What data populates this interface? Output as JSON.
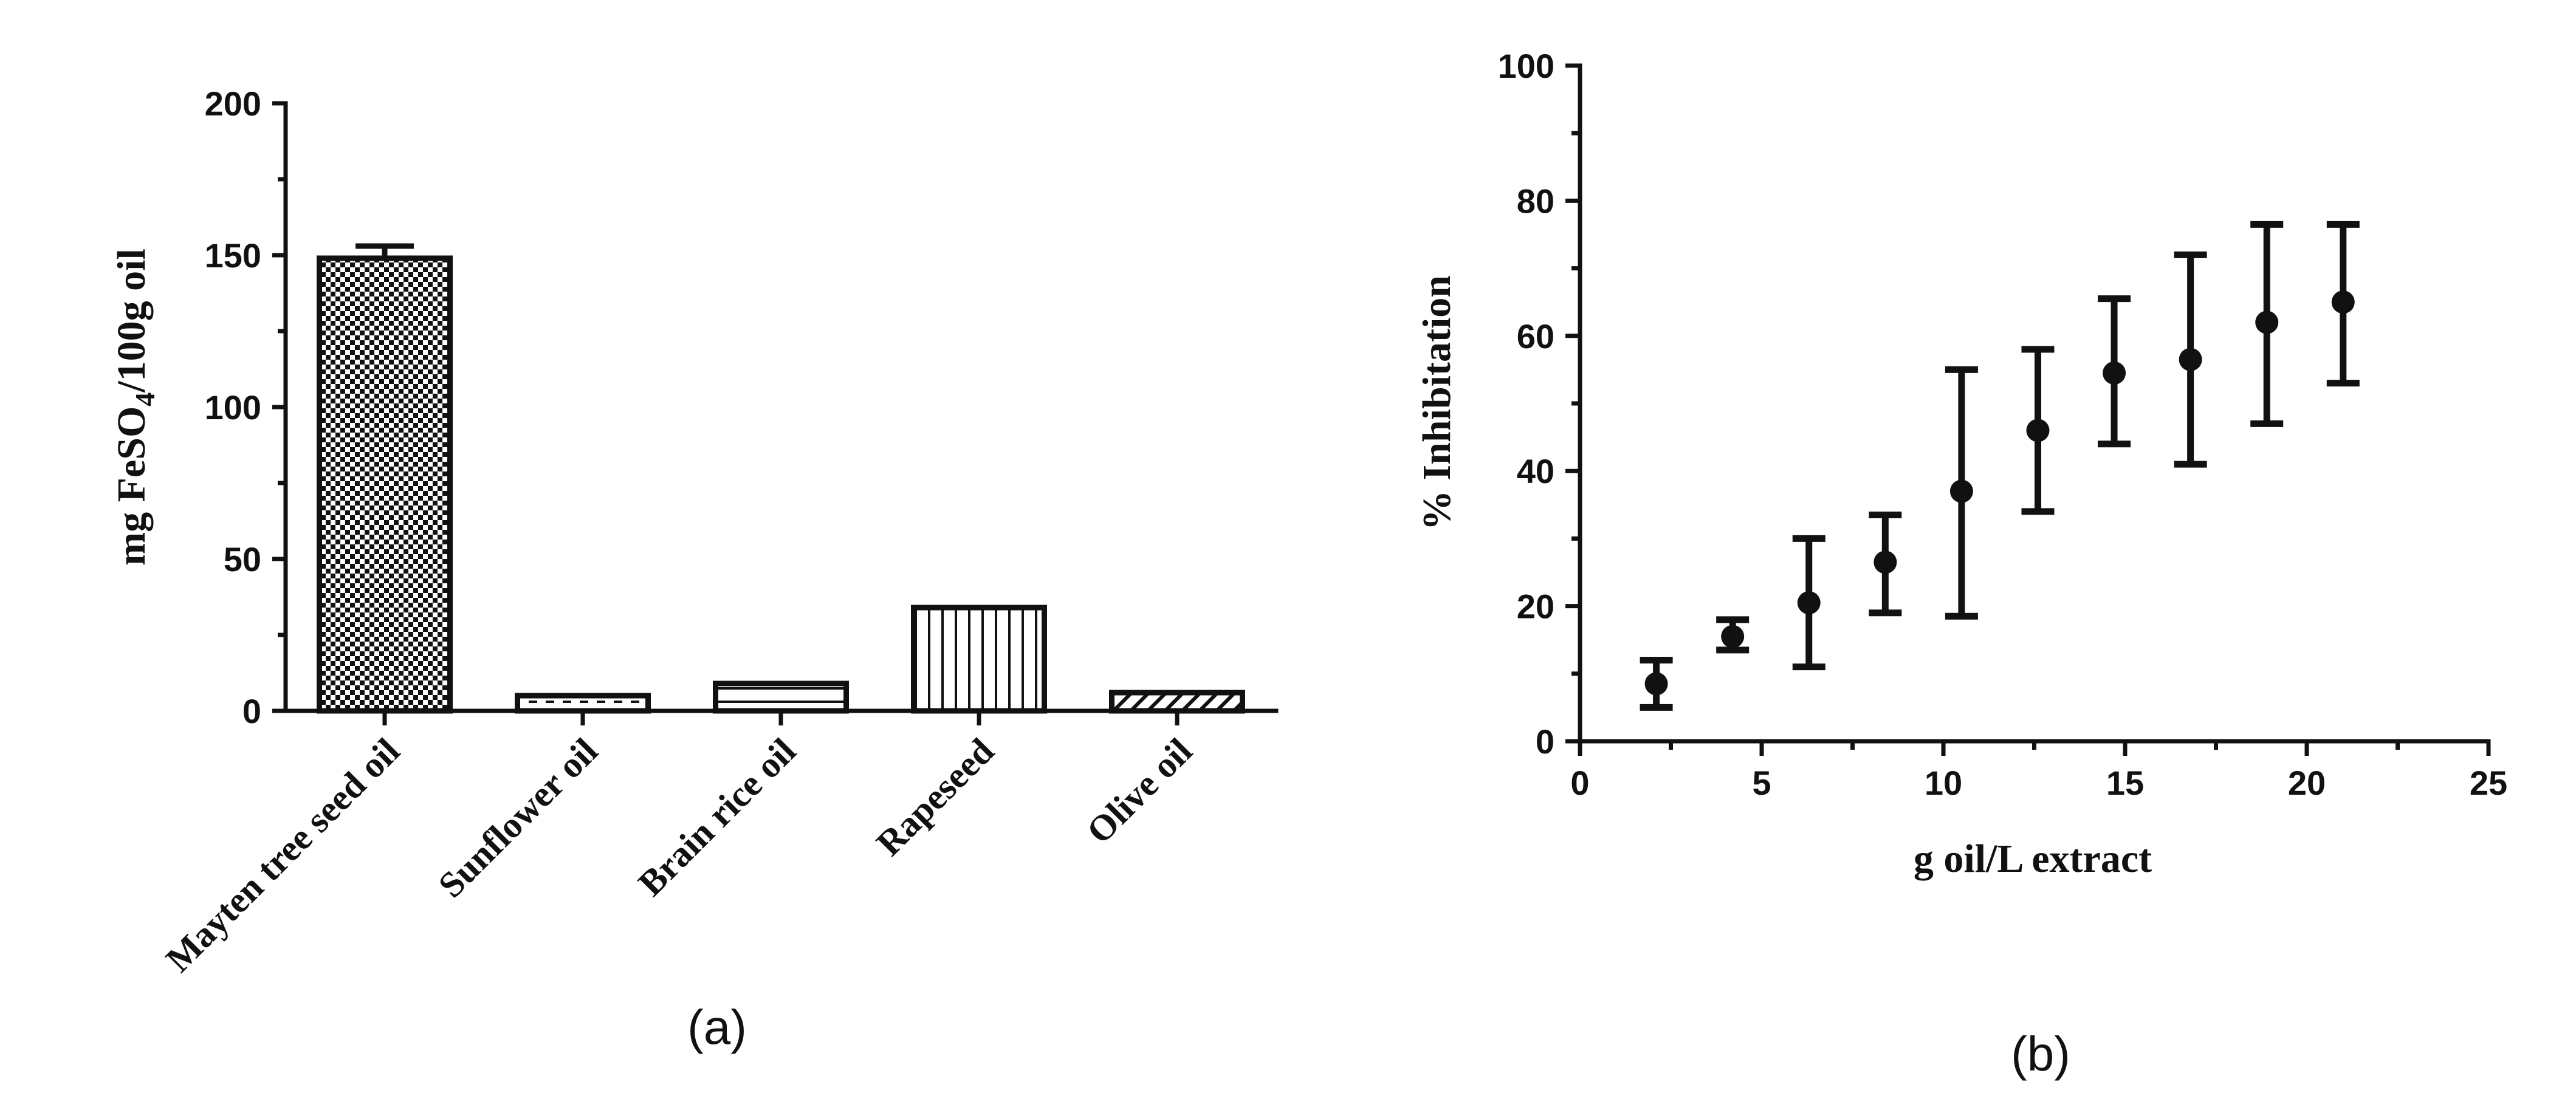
{
  "chart_data": [
    {
      "type": "bar",
      "panel_label": "(a)",
      "ylabel": "mg FeSO",
      "ylabel_subscript": "4",
      "ylabel_suffix": "/100g oil",
      "ylim": [
        0,
        200
      ],
      "yticks": [
        "0",
        "50",
        "100",
        "150",
        "200"
      ],
      "categories": [
        "Mayten tree seed oil",
        "Sunflower oil",
        "Brain rice oil",
        "Rapeseed",
        "Olive oil"
      ],
      "values": [
        149,
        5,
        9,
        34,
        6
      ],
      "errors": [
        4,
        0,
        0,
        0,
        0
      ],
      "patterns": [
        "checker",
        "dash",
        "hline",
        "vline",
        "diagonal"
      ]
    },
    {
      "type": "scatter",
      "panel_label": "(b)",
      "xlabel": "g oil/L extract",
      "ylabel": "% Inhibitation",
      "xlim": [
        0,
        25
      ],
      "ylim": [
        0,
        100
      ],
      "xticks": [
        "0",
        "5",
        "10",
        "15",
        "20",
        "25"
      ],
      "yticks": [
        "0",
        "20",
        "40",
        "60",
        "80",
        "100"
      ],
      "x": [
        2.1,
        4.2,
        6.3,
        8.4,
        10.5,
        12.6,
        14.7,
        16.8,
        18.9,
        21.0
      ],
      "y": [
        8.5,
        15.5,
        20.5,
        26.5,
        37,
        46,
        54.5,
        56.5,
        62,
        65
      ],
      "err_low": [
        5,
        13.5,
        11,
        19,
        18.5,
        34,
        44,
        41,
        47,
        53
      ],
      "err_high": [
        12,
        18,
        30,
        33.5,
        55,
        58,
        65.5,
        72,
        76.5,
        76.5
      ]
    }
  ]
}
